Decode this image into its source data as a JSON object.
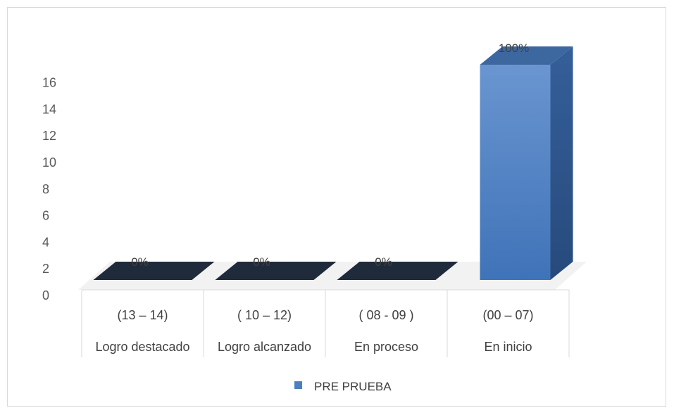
{
  "chart_data": {
    "type": "bar",
    "style": "3d-column",
    "categories": [
      {
        "range": "(13 – 14)",
        "label": "Logro destacado"
      },
      {
        "range": "( 10 – 12)",
        "label": "Logro alcanzado"
      },
      {
        "range": "( 08 - 09 )",
        "label": "En proceso"
      },
      {
        "range": "(00 – 07)",
        "label": "En inicio"
      }
    ],
    "series": [
      {
        "name": "PRE PRUEBA",
        "values": [
          0,
          0,
          0,
          16
        ],
        "data_labels": [
          "0%",
          "0%",
          "0%",
          "100%"
        ],
        "color": "#4a7fc1"
      }
    ],
    "yticks": [
      "0",
      "2",
      "4",
      "6",
      "8",
      "10",
      "12",
      "14",
      "16"
    ],
    "ylim": [
      0,
      16
    ],
    "grid": false,
    "legend": "bottom-center"
  }
}
